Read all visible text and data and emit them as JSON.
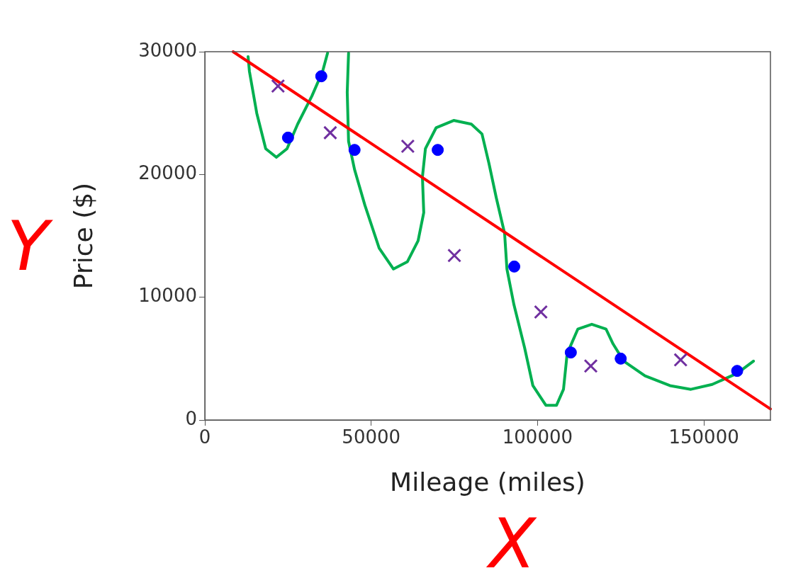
{
  "chart_data": {
    "type": "scatter",
    "xlabel": "Mileage (miles)",
    "ylabel": "Price ($)",
    "xlim": [
      0,
      170000
    ],
    "ylim": [
      0,
      30000
    ],
    "xticks": [
      0,
      50000,
      100000,
      150000
    ],
    "yticks": [
      0,
      10000,
      20000,
      30000
    ],
    "grid": false,
    "legend": false,
    "annotations": [
      "Y",
      "X"
    ],
    "series": [
      {
        "type": "scatter",
        "marker": "circle",
        "color": "#0000ff",
        "x": [
          25000,
          35000,
          45000,
          70000,
          93000,
          110000,
          125000,
          160000
        ],
        "values": [
          23000,
          28000,
          22000,
          22000,
          12500,
          5500,
          5000,
          4000
        ]
      },
      {
        "type": "scatter",
        "marker": "cross",
        "color": "#7030a0",
        "x": [
          22000,
          37700,
          61000,
          75000,
          101000,
          116000,
          143000
        ],
        "values": [
          27200,
          23400,
          22300,
          13400,
          8800,
          4400,
          4900
        ]
      },
      {
        "type": "line",
        "marker": "none",
        "color": "#ff0000",
        "x": [
          8500,
          170000
        ],
        "values": [
          30000,
          900
        ]
      },
      {
        "type": "line",
        "marker": "none",
        "color": "#00b050",
        "x": [
          13000,
          13400,
          15600,
          18300,
          21500,
          24700,
          27900,
          32200,
          35400,
          36900,
          40000,
          43200,
          42800,
          43200,
          45000,
          48100,
          52400,
          56700,
          60900,
          64100,
          65800,
          65400,
          66300,
          69500,
          74800,
          80100,
          83300,
          85400,
          87600,
          90100,
          90800,
          92900,
          96100,
          98600,
          102500,
          105700,
          107800,
          108900,
          112100,
          116300,
          120600,
          122700,
          125900,
          132300,
          139800,
          146100,
          152500,
          160000,
          164900
        ],
        "values": [
          29600,
          28400,
          25000,
          22100,
          21400,
          22100,
          24100,
          26400,
          28400,
          29900,
          null,
          29900,
          26700,
          22700,
          20400,
          17500,
          14000,
          12300,
          12900,
          14600,
          16900,
          19800,
          22100,
          23800,
          24400,
          24100,
          23300,
          20900,
          18100,
          15200,
          12300,
          9400,
          5900,
          2800,
          1200,
          1200,
          2500,
          5400,
          7400,
          7800,
          7400,
          6200,
          4800,
          3600,
          2800,
          2500,
          2900,
          3800,
          4800
        ]
      }
    ]
  }
}
